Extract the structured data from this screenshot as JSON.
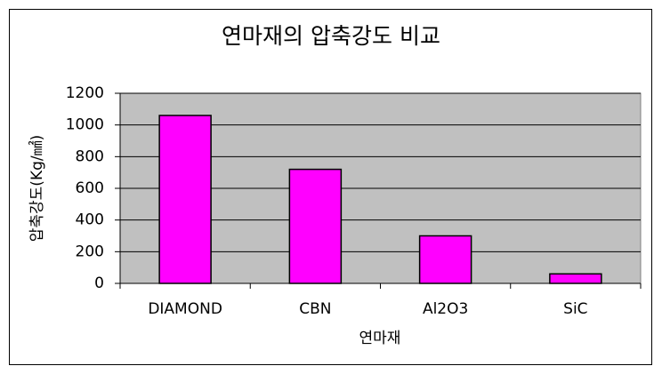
{
  "chart_data": {
    "type": "bar",
    "title": "연마재의 압축강도 비교",
    "y_label": "압축강도(Kg/㎟)",
    "x_label": "연마재",
    "categories": [
      "DIAMOND",
      "CBN",
      "Al2O3",
      "SiC"
    ],
    "values": [
      1060,
      720,
      300,
      60
    ],
    "color": "#ff00ff",
    "ylim": [
      0,
      1200
    ],
    "yticks": [
      0,
      200,
      400,
      600,
      800,
      1000,
      1200
    ],
    "grid": true
  }
}
